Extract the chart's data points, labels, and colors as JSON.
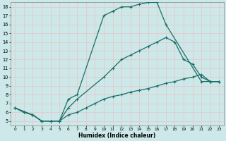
{
  "xlabel": "Humidex (Indice chaleur)",
  "xlim": [
    -0.5,
    23.5
  ],
  "ylim": [
    4.5,
    18.5
  ],
  "xticks": [
    0,
    1,
    2,
    3,
    4,
    5,
    6,
    7,
    8,
    9,
    10,
    11,
    12,
    13,
    14,
    15,
    16,
    17,
    18,
    19,
    20,
    21,
    22,
    23
  ],
  "yticks": [
    5,
    6,
    7,
    8,
    9,
    10,
    11,
    12,
    13,
    14,
    15,
    16,
    17,
    18
  ],
  "bg_color": "#cce8e8",
  "line_color": "#1a6e6a",
  "grid_color": "#b0d0d0",
  "curves": [
    {
      "x": [
        0,
        1,
        2,
        3,
        4,
        5,
        6,
        7,
        10,
        11,
        12,
        13,
        14,
        15,
        16,
        17,
        21,
        22,
        23
      ],
      "y": [
        6.5,
        6.0,
        5.7,
        5.0,
        5.0,
        5.0,
        7.5,
        8.0,
        17.0,
        17.5,
        18.0,
        18.0,
        18.3,
        18.5,
        18.5,
        16.0,
        9.5,
        9.5,
        9.5
      ]
    },
    {
      "x": [
        0,
        2,
        3,
        4,
        5,
        6,
        7,
        10,
        11,
        12,
        13,
        14,
        15,
        16,
        17,
        18,
        19,
        20,
        21,
        22,
        23
      ],
      "y": [
        6.5,
        5.7,
        5.0,
        5.0,
        5.0,
        6.5,
        7.5,
        10.0,
        11.0,
        12.0,
        12.5,
        13.0,
        13.5,
        14.0,
        14.5,
        14.0,
        12.0,
        11.5,
        10.0,
        9.5,
        9.5
      ]
    },
    {
      "x": [
        0,
        1,
        2,
        3,
        4,
        5,
        6,
        7,
        8,
        9,
        10,
        11,
        12,
        13,
        14,
        15,
        16,
        17,
        18,
        19,
        20,
        21,
        22,
        23
      ],
      "y": [
        6.5,
        6.0,
        5.7,
        5.0,
        5.0,
        5.0,
        5.7,
        6.0,
        6.5,
        7.0,
        7.5,
        7.8,
        8.0,
        8.3,
        8.5,
        8.7,
        9.0,
        9.3,
        9.5,
        9.8,
        10.0,
        10.3,
        9.5,
        9.5
      ]
    }
  ]
}
